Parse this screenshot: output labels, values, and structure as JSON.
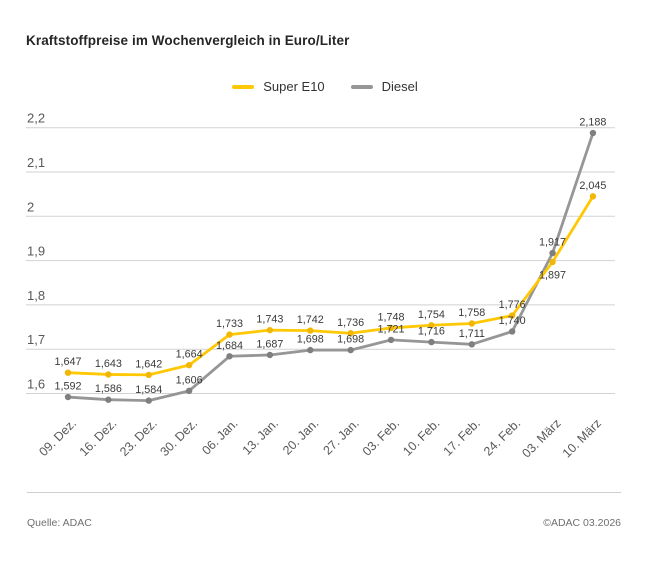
{
  "title": "Kraftstoffpreise im Wochenvergleich in Euro/Liter",
  "footer": {
    "source": "Quelle: ADAC",
    "copyright": "©ADAC 03.2026"
  },
  "chart_data": {
    "type": "line",
    "title": "Kraftstoffpreise im Wochenvergleich in Euro/Liter",
    "xlabel": "",
    "ylabel": "Euro/Liter",
    "grid": true,
    "legend_position": "top-center",
    "ylim": [
      1.6,
      2.2
    ],
    "ytick_values": [
      2.2,
      2.1,
      2.0,
      1.9,
      1.8,
      1.7,
      1.6
    ],
    "ytick_labels": [
      "2,2",
      "2,1",
      "2",
      "1,9",
      "1,8",
      "1,7",
      "1,6"
    ],
    "categories": [
      "09. Dez.",
      "16. Dez.",
      "23. Dez.",
      "30. Dez.",
      "06. Jan.",
      "13. Jan.",
      "20. Jan.",
      "27. Jan.",
      "03. Feb.",
      "10. Feb.",
      "17. Feb.",
      "24. Feb.",
      "03. März",
      "10. März"
    ],
    "series": [
      {
        "name": "Super E10",
        "color": "#FFC805",
        "marker_color": "#F2B705",
        "values": [
          1.647,
          1.643,
          1.642,
          1.664,
          1.733,
          1.743,
          1.742,
          1.736,
          1.748,
          1.754,
          1.758,
          1.776,
          1.897,
          2.045
        ],
        "point_labels": [
          "1,647",
          "1,643",
          "1,642",
          "1,664",
          "1,733",
          "1,743",
          "1,742",
          "1,736",
          "1,748",
          "1,754",
          "1,758",
          "1,776",
          "1,897",
          "2,045"
        ],
        "labels_below_indices": [
          12
        ]
      },
      {
        "name": "Diesel",
        "color": "#969696",
        "marker_color": "#7f7f7f",
        "values": [
          1.592,
          1.586,
          1.584,
          1.606,
          1.684,
          1.687,
          1.698,
          1.698,
          1.721,
          1.716,
          1.711,
          1.74,
          1.917,
          2.188
        ],
        "point_labels": [
          "1,592",
          "1,586",
          "1,584",
          "1,606",
          "1,684",
          "1,687",
          "1,698",
          "1,698",
          "1,721",
          "1,716",
          "1,711",
          "1,740",
          "1,917",
          "2,188"
        ],
        "labels_below_indices": []
      }
    ],
    "style": {
      "gridline_color": "#d2d2d2",
      "tick_label_color": "#595959",
      "data_label_color": "#3a3a3a"
    }
  }
}
